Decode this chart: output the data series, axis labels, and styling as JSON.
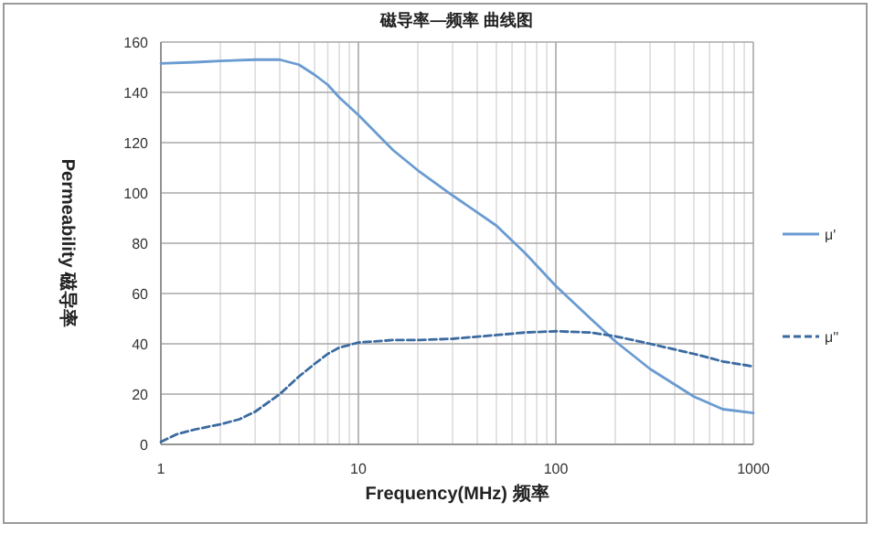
{
  "chart_data": {
    "type": "line",
    "title": "磁导率—频率 曲线图",
    "xlabel": "Frequency(MHz)   频率",
    "ylabel": "Permeability   磁导率",
    "log": "x",
    "xlim": [
      1,
      1000
    ],
    "xticks": [
      1,
      10,
      100,
      1000
    ],
    "ylim": [
      0,
      160
    ],
    "yticks": [
      0,
      20,
      40,
      60,
      80,
      100,
      120,
      140,
      160
    ],
    "grid": true,
    "legend": "right",
    "series": [
      {
        "name": "μ'",
        "color": "#6a9bd1",
        "line_style": "solid",
        "x": [
          1,
          1.5,
          2,
          3,
          4,
          5,
          6,
          7,
          8,
          10,
          15,
          20,
          30,
          50,
          70,
          100,
          150,
          200,
          300,
          500,
          700,
          1000
        ],
        "values": [
          151.5,
          152,
          152.5,
          153,
          153,
          151,
          147,
          143,
          138,
          131,
          117,
          109,
          99,
          87,
          76,
          63,
          50,
          41,
          30,
          19,
          14,
          12.5
        ]
      },
      {
        "name": "μ''",
        "color": "#3a6aa0",
        "line_style": "dashed",
        "x": [
          1,
          1.2,
          1.5,
          2,
          2.5,
          3,
          4,
          5,
          6,
          7,
          8,
          10,
          15,
          20,
          30,
          50,
          70,
          100,
          150,
          200,
          300,
          500,
          700,
          1000
        ],
        "values": [
          1,
          4,
          6,
          8,
          10,
          13,
          20,
          27,
          32,
          36,
          38.5,
          40.5,
          41.5,
          41.5,
          42,
          43.5,
          44.5,
          45,
          44.5,
          43,
          40,
          36,
          33,
          31
        ]
      }
    ]
  }
}
